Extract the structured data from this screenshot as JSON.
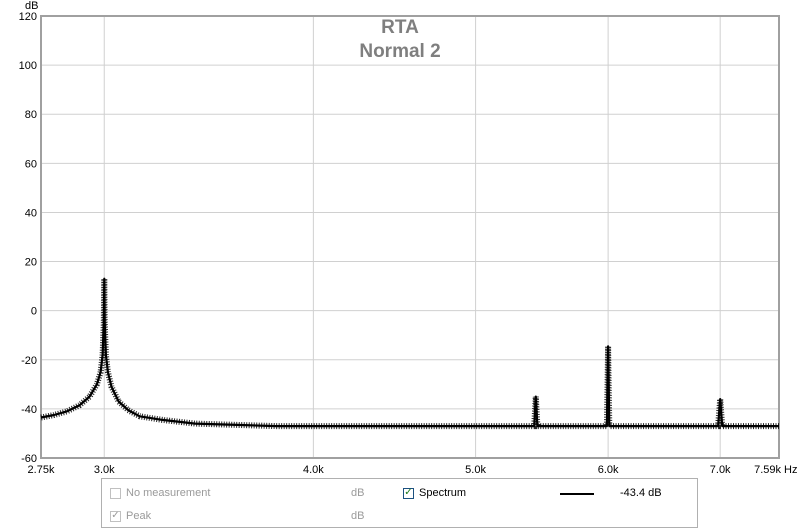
{
  "chart_data": {
    "type": "line",
    "title": "RTA",
    "subtitle": "Normal 2",
    "ylabel": "dB",
    "xlabel": "Hz",
    "ylim": [
      -60,
      120
    ],
    "xlim": [
      2750,
      7590
    ],
    "x_scale": "log",
    "yticks": [
      120,
      100,
      80,
      60,
      40,
      20,
      0,
      -20,
      -40,
      -60
    ],
    "xtick_labels": [
      {
        "value": 2750,
        "label": "2.75k"
      },
      {
        "value": 3000,
        "label": "3.0k"
      },
      {
        "value": 4000,
        "label": "4.0k"
      },
      {
        "value": 5000,
        "label": "5.0k"
      },
      {
        "value": 6000,
        "label": "6.0k"
      },
      {
        "value": 7000,
        "label": "7.0k"
      },
      {
        "value": 7590,
        "label": "7.59k"
      }
    ],
    "grid": true,
    "series": [
      {
        "name": "Spectrum",
        "color": "#000000",
        "x": [
          2750,
          2800,
          2850,
          2900,
          2940,
          2970,
          2985,
          2993,
          2998,
          3000,
          3002,
          3007,
          3015,
          3030,
          3060,
          3100,
          3150,
          3250,
          3400,
          3600,
          3800,
          4000,
          4300,
          4600,
          5000,
          5300,
          5420,
          5432,
          5444,
          5600,
          5800,
          5990,
          6000,
          6010,
          6200,
          6500,
          6980,
          7000,
          7020,
          7300,
          7590
        ],
        "values": [
          -43.5,
          -42.5,
          -41,
          -38.5,
          -35,
          -30,
          -25,
          -18,
          -5,
          13,
          -5,
          -18,
          -25,
          -31,
          -37,
          -40.5,
          -43,
          -44.5,
          -46,
          -46.5,
          -47,
          -47,
          -47,
          -47,
          -47,
          -47,
          -47,
          -35,
          -47,
          -47,
          -47,
          -47,
          -14.5,
          -47,
          -47,
          -47,
          -47,
          -36,
          -47,
          -47,
          -47
        ]
      }
    ],
    "legend": {
      "rows": [
        {
          "checked": false,
          "label": "No measurement",
          "unit": "dB",
          "enabled": false
        },
        {
          "checked": true,
          "label": "Peak",
          "unit": "dB",
          "enabled": false
        },
        {
          "checked": true,
          "label": "Spectrum",
          "value": "-43.4 dB",
          "enabled": true
        }
      ]
    }
  }
}
